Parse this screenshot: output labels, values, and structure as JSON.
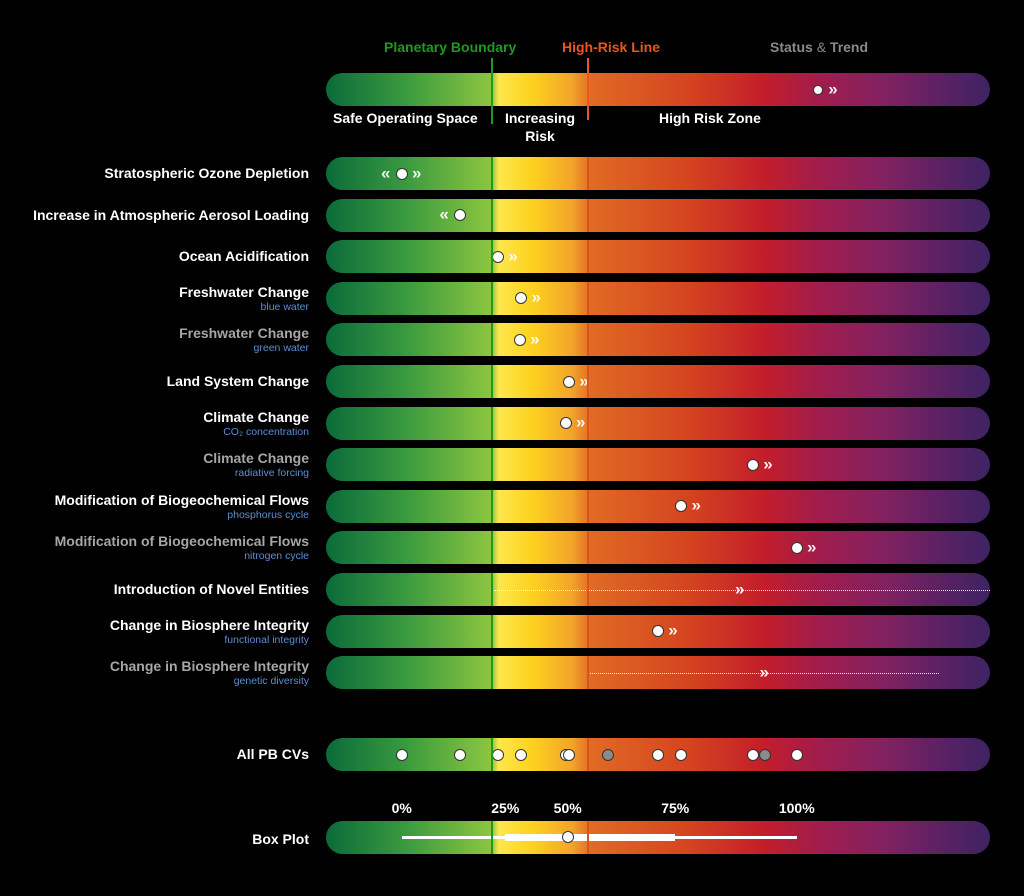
{
  "header": {
    "planetary_boundary": "Planetary Boundary",
    "high_risk_line": "High-Risk Line",
    "status_word": "Status",
    "amp": "&",
    "trend_word": "Trend"
  },
  "colors": {
    "pb_green": "#1f9a1f",
    "high_risk_orange": "#e8571b",
    "status_gray": "#8a8a8a",
    "subtitle_blue": "#5b8fd6"
  },
  "legend_bar": {
    "zones": [
      "Safe Operating Space",
      "Increasing Risk",
      "High Risk Zone"
    ],
    "zone_increasing_line1": "Increasing",
    "zone_increasing_line2": "Risk",
    "example_status": 0.74,
    "example_trend": "increasing"
  },
  "chart_data": {
    "type": "scatter",
    "title": "",
    "scale_note": "positions as fraction of bar length; planetary boundary at 0.25, high-risk line at 0.395",
    "planetary_boundary": 0.25,
    "high_risk_line": 0.395,
    "rows": [
      {
        "label": "Stratospheric Ozone Depletion",
        "sub": "",
        "dim": false,
        "status": 0.114,
        "trend": "both",
        "uncertain": false
      },
      {
        "label": "Increase in Atmospheric Aerosol Loading",
        "sub": "",
        "dim": false,
        "status": 0.202,
        "trend": "decreasing",
        "uncertain": false
      },
      {
        "label": "Ocean Acidification",
        "sub": "",
        "dim": false,
        "status": 0.259,
        "trend": "increasing",
        "uncertain": false
      },
      {
        "label": "Freshwater Change",
        "sub": "blue water",
        "dim": false,
        "status": 0.294,
        "trend": "increasing",
        "uncertain": false
      },
      {
        "label": "Freshwater Change",
        "sub": "green water",
        "dim": true,
        "status": 0.292,
        "trend": "increasing",
        "uncertain": false
      },
      {
        "label": "Land System Change",
        "sub": "",
        "dim": false,
        "status": 0.366,
        "trend": "increasing",
        "uncertain": false
      },
      {
        "label": "Climate Change",
        "sub": "CO₂ concentration",
        "dim": false,
        "status": 0.361,
        "trend": "increasing",
        "uncertain": false
      },
      {
        "label": "Climate Change",
        "sub": "radiative forcing",
        "dim": true,
        "status": 0.643,
        "trend": "increasing",
        "uncertain": false
      },
      {
        "label": "Modification of Biogeochemical Flows",
        "sub": "phosphorus cycle",
        "dim": false,
        "status": 0.535,
        "trend": "increasing",
        "uncertain": false
      },
      {
        "label": "Modification of Biogeochemical Flows",
        "sub": "nitrogen cycle",
        "dim": true,
        "status": 0.709,
        "trend": "increasing",
        "uncertain": false
      },
      {
        "label": "Introduction of Novel Entities",
        "sub": "",
        "dim": false,
        "status": null,
        "trend": "increasing",
        "uncertain": true,
        "range": [
          0.253,
          1.0
        ],
        "trend_pos": 0.623
      },
      {
        "label": "Change in Biosphere Integrity",
        "sub": "functional integrity",
        "dim": false,
        "status": 0.5,
        "trend": "increasing",
        "uncertain": false
      },
      {
        "label": "Change in Biosphere Integrity",
        "sub": "genetic diversity",
        "dim": true,
        "status": null,
        "trend": "increasing",
        "uncertain": true,
        "range": [
          0.395,
          0.923
        ],
        "trend_pos": 0.66
      }
    ],
    "all_cvs": {
      "label": "All PB CVs",
      "points": [
        {
          "v": 0.114,
          "gray": false
        },
        {
          "v": 0.202,
          "gray": false
        },
        {
          "v": 0.259,
          "gray": false
        },
        {
          "v": 0.294,
          "gray": false
        },
        {
          "v": 0.361,
          "gray": false
        },
        {
          "v": 0.366,
          "gray": false
        },
        {
          "v": 0.425,
          "gray": true
        },
        {
          "v": 0.5,
          "gray": false
        },
        {
          "v": 0.535,
          "gray": false
        },
        {
          "v": 0.643,
          "gray": false
        },
        {
          "v": 0.661,
          "gray": true
        },
        {
          "v": 0.709,
          "gray": false
        }
      ]
    },
    "box_plot": {
      "label": "Box Plot",
      "quantile_labels": [
        "0%",
        "25%",
        "50%",
        "75%",
        "100%"
      ],
      "min": 0.114,
      "q1": 0.27,
      "median": 0.364,
      "q3": 0.526,
      "max": 0.709
    }
  }
}
